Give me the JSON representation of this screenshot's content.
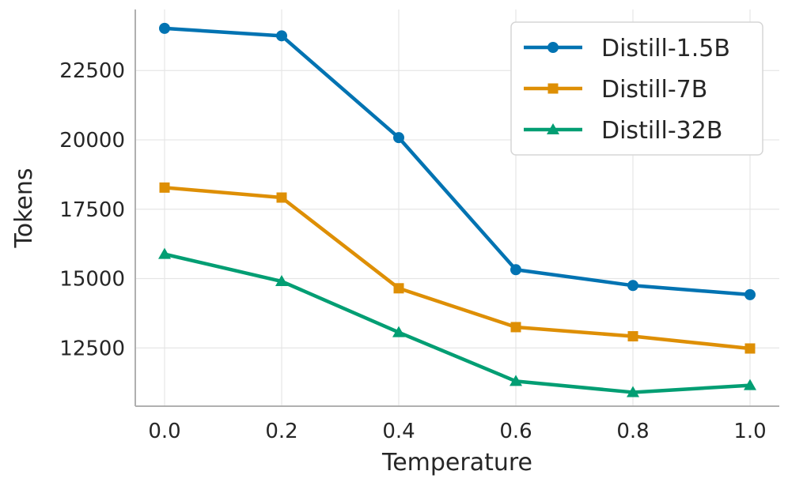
{
  "chart_data": {
    "type": "line",
    "title": "",
    "xlabel": "Temperature",
    "ylabel": "Tokens",
    "x": [
      0.0,
      0.2,
      0.4,
      0.6,
      0.8,
      1.0
    ],
    "x_tick_labels": [
      "0.0",
      "0.2",
      "0.4",
      "0.6",
      "0.8",
      "1.0"
    ],
    "y_ticks": [
      12500,
      15000,
      17500,
      20000,
      22500
    ],
    "y_tick_labels": [
      "12500",
      "15000",
      "17500",
      "20000",
      "22500"
    ],
    "xlim": [
      -0.05,
      1.05
    ],
    "ylim": [
      10400,
      24700
    ],
    "grid": true,
    "legend_position": "top-right",
    "series": [
      {
        "name": "Distill-1.5B",
        "color": "#0173b2",
        "marker": "circle",
        "values": [
          24020,
          23750,
          20080,
          15320,
          14750,
          14420
        ]
      },
      {
        "name": "Distill-7B",
        "color": "#de8f05",
        "marker": "square",
        "values": [
          18280,
          17920,
          14650,
          13250,
          12920,
          12480
        ]
      },
      {
        "name": "Distill-32B",
        "color": "#029e73",
        "marker": "triangle",
        "values": [
          15880,
          14900,
          13060,
          11300,
          10900,
          11150
        ]
      }
    ]
  }
}
